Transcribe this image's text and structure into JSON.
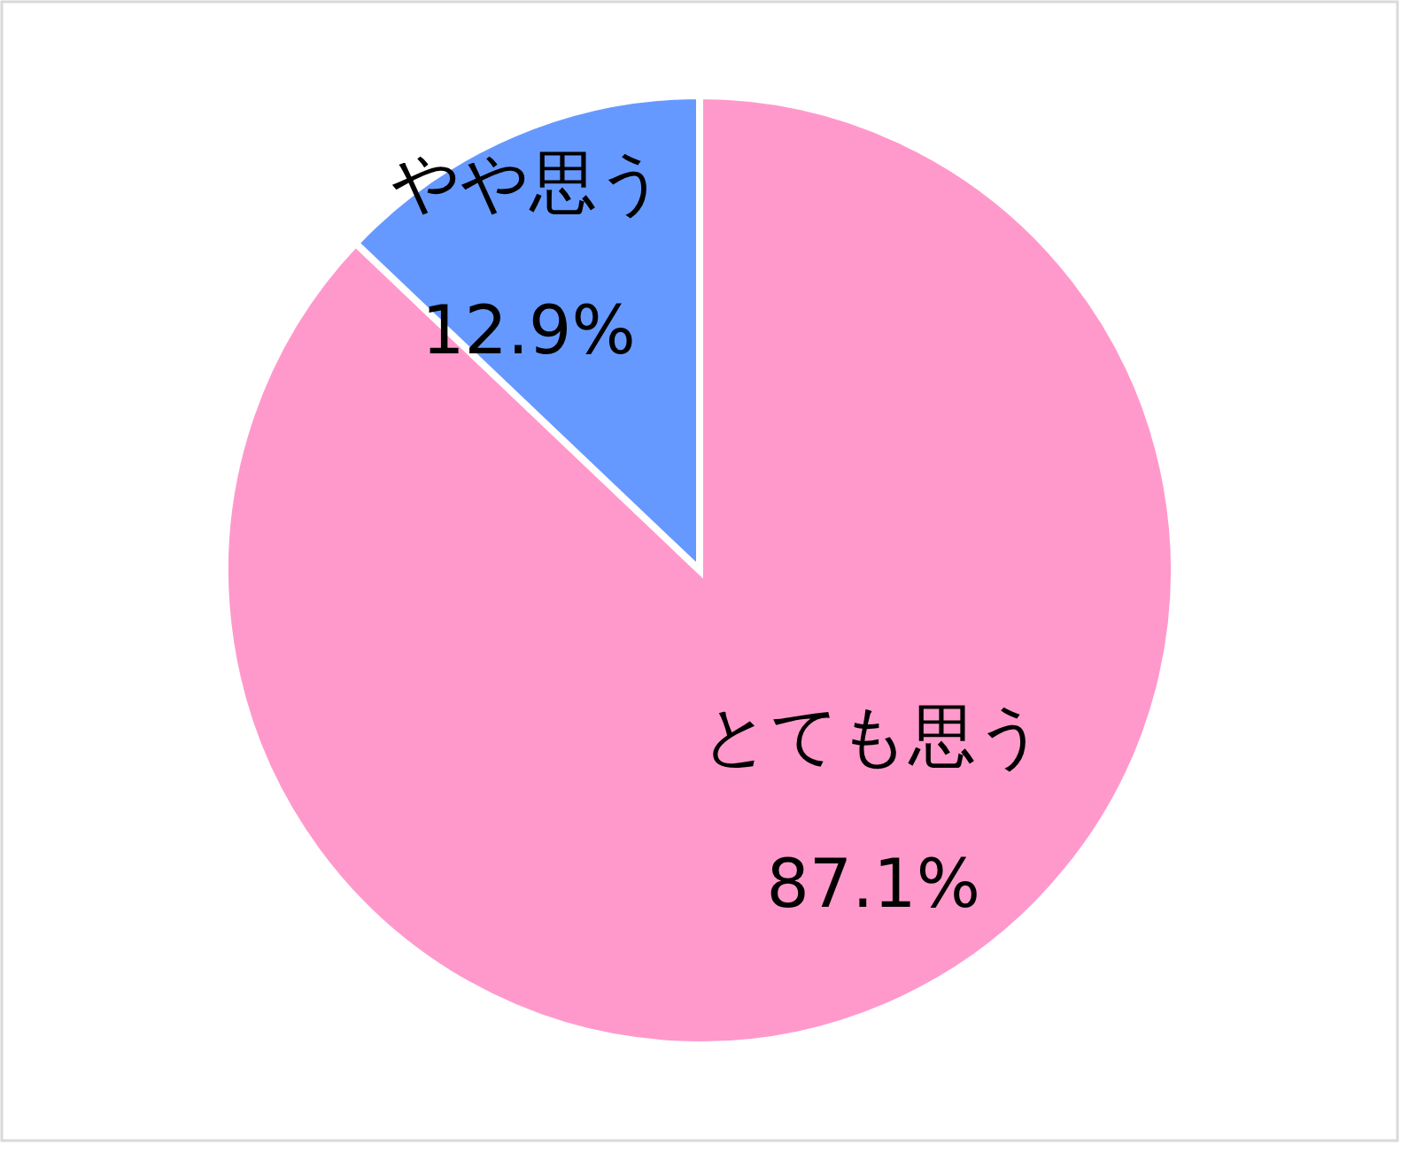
{
  "chart_data": {
    "type": "pie",
    "categories": [
      "とても思う",
      "やや思う"
    ],
    "values": [
      87.1,
      12.9
    ],
    "colors": [
      "#ff99cc",
      "#6699ff"
    ],
    "value_labels": [
      "87.1%",
      "12.9%"
    ]
  }
}
